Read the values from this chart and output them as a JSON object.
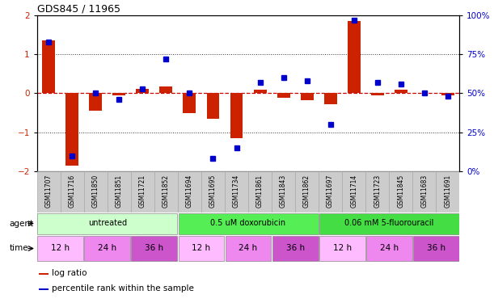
{
  "title": "GDS845 / 11965",
  "samples": [
    "GSM11707",
    "GSM11716",
    "GSM11850",
    "GSM11851",
    "GSM11721",
    "GSM11852",
    "GSM11694",
    "GSM11695",
    "GSM11734",
    "GSM11861",
    "GSM11843",
    "GSM11862",
    "GSM11697",
    "GSM11714",
    "GSM11723",
    "GSM11845",
    "GSM11683",
    "GSM11691"
  ],
  "log_ratio": [
    1.35,
    -1.85,
    -0.45,
    -0.05,
    0.12,
    0.18,
    -0.52,
    -0.65,
    -1.15,
    0.08,
    -0.12,
    -0.18,
    -0.28,
    1.85,
    -0.05,
    0.08,
    0.0,
    -0.05
  ],
  "percentile": [
    83,
    10,
    50,
    46,
    53,
    72,
    50,
    8,
    15,
    57,
    60,
    58,
    30,
    97,
    57,
    56,
    50,
    48
  ],
  "ylim_left": [
    -2,
    2
  ],
  "ylim_right": [
    0,
    100
  ],
  "yticks_left": [
    -2,
    -1,
    0,
    1,
    2
  ],
  "yticks_right": [
    0,
    25,
    50,
    75,
    100
  ],
  "bar_color": "#cc2200",
  "dot_color": "#0000cc",
  "hline_color": "#cc0000",
  "grid_color": "#333333",
  "agent_groups": [
    {
      "label": "untreated",
      "start": 0,
      "end": 6,
      "color": "#ccffcc"
    },
    {
      "label": "0.5 uM doxorubicin",
      "start": 6,
      "end": 12,
      "color": "#55ee55"
    },
    {
      "label": "0.06 mM 5-fluorouracil",
      "start": 12,
      "end": 18,
      "color": "#44dd44"
    }
  ],
  "time_groups": [
    {
      "label": "12 h",
      "start": 0,
      "end": 2,
      "color": "#ffbbff"
    },
    {
      "label": "24 h",
      "start": 2,
      "end": 4,
      "color": "#ee88ee"
    },
    {
      "label": "36 h",
      "start": 4,
      "end": 6,
      "color": "#cc55cc"
    },
    {
      "label": "12 h",
      "start": 6,
      "end": 8,
      "color": "#ffbbff"
    },
    {
      "label": "24 h",
      "start": 8,
      "end": 10,
      "color": "#ee88ee"
    },
    {
      "label": "36 h",
      "start": 10,
      "end": 12,
      "color": "#cc55cc"
    },
    {
      "label": "12 h",
      "start": 12,
      "end": 14,
      "color": "#ffbbff"
    },
    {
      "label": "24 h",
      "start": 14,
      "end": 16,
      "color": "#ee88ee"
    },
    {
      "label": "36 h",
      "start": 16,
      "end": 18,
      "color": "#cc55cc"
    }
  ],
  "bg_color": "#ffffff",
  "sample_bg_color": "#cccccc",
  "legend_items": [
    {
      "label": "log ratio",
      "color": "#cc2200"
    },
    {
      "label": "percentile rank within the sample",
      "color": "#0000cc"
    }
  ]
}
